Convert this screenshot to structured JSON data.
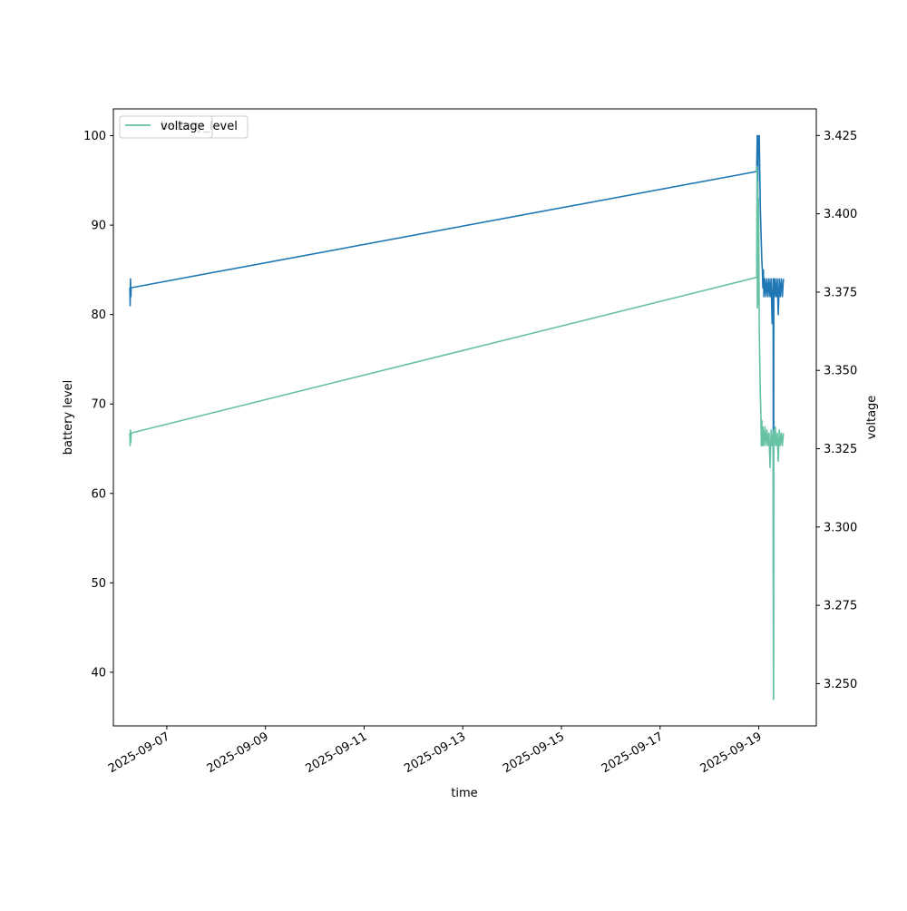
{
  "chart_data": {
    "type": "line",
    "title": "",
    "xlabel": "time",
    "ylabel": "battery level",
    "y2label": "voltage",
    "x_ticks": [
      "2025-09-07",
      "2025-09-09",
      "2025-09-11",
      "2025-09-13",
      "2025-09-15",
      "2025-09-17",
      "2025-09-19"
    ],
    "y_ticks": [
      40,
      50,
      60,
      70,
      80,
      90,
      100
    ],
    "y2_ticks": [
      "3.250",
      "3.275",
      "3.300",
      "3.325",
      "3.350",
      "3.375",
      "3.400",
      "3.425"
    ],
    "xlim": [
      "2025-09-05T22:00",
      "2025-09-20T04:00"
    ],
    "ylim": [
      34,
      103
    ],
    "y2lim": [
      3.2365,
      3.4335
    ],
    "grid": false,
    "legend_position": "upper-left",
    "legend_overlap": true,
    "series": [
      {
        "name": "battery_level",
        "axis": "left",
        "color": "#1f77b4",
        "points": [
          [
            "2025-09-06T06:00",
            83
          ],
          [
            "2025-09-06T06:10",
            81
          ],
          [
            "2025-09-06T06:20",
            84
          ],
          [
            "2025-09-06T06:30",
            82
          ],
          [
            "2025-09-06T06:40",
            83
          ],
          [
            "2025-09-18T23:00",
            96
          ],
          [
            "2025-09-18T23:15",
            100
          ],
          [
            "2025-09-18T23:30",
            93
          ],
          [
            "2025-09-18T23:45",
            100
          ],
          [
            "2025-09-19T00:00",
            98
          ],
          [
            "2025-09-19T00:15",
            100
          ],
          [
            "2025-09-19T00:30",
            96
          ],
          [
            "2025-09-19T00:45",
            92
          ],
          [
            "2025-09-19T01:00",
            90
          ],
          [
            "2025-09-19T01:15",
            88
          ],
          [
            "2025-09-19T01:30",
            86
          ],
          [
            "2025-09-19T01:45",
            85
          ],
          [
            "2025-09-19T02:00",
            83
          ],
          [
            "2025-09-19T02:15",
            85
          ],
          [
            "2025-09-19T02:30",
            82
          ],
          [
            "2025-09-19T03:00",
            84
          ],
          [
            "2025-09-19T03:30",
            82
          ],
          [
            "2025-09-19T04:00",
            84
          ],
          [
            "2025-09-19T04:30",
            82
          ],
          [
            "2025-09-19T05:00",
            84
          ],
          [
            "2025-09-19T05:30",
            82
          ],
          [
            "2025-09-19T06:00",
            84
          ],
          [
            "2025-09-19T06:30",
            79
          ],
          [
            "2025-09-19T07:00",
            84
          ],
          [
            "2025-09-19T07:10",
            37
          ],
          [
            "2025-09-19T07:20",
            84
          ],
          [
            "2025-09-19T07:40",
            82
          ],
          [
            "2025-09-19T08:00",
            84
          ],
          [
            "2025-09-19T08:30",
            82
          ],
          [
            "2025-09-19T09:00",
            84
          ],
          [
            "2025-09-19T09:30",
            80
          ],
          [
            "2025-09-19T10:00",
            84
          ],
          [
            "2025-09-19T10:30",
            82
          ],
          [
            "2025-09-19T11:00",
            84
          ],
          [
            "2025-09-19T11:30",
            82
          ],
          [
            "2025-09-19T12:00",
            84
          ]
        ]
      },
      {
        "name": "voltage",
        "axis": "right",
        "color": "#66c2a5",
        "points": [
          [
            "2025-09-06T06:00",
            3.33
          ],
          [
            "2025-09-06T06:10",
            3.326
          ],
          [
            "2025-09-06T06:20",
            3.331
          ],
          [
            "2025-09-06T06:30",
            3.327
          ],
          [
            "2025-09-06T06:40",
            3.33
          ],
          [
            "2025-09-18T23:00",
            3.3797
          ],
          [
            "2025-09-18T23:10",
            3.415
          ],
          [
            "2025-09-18T23:20",
            3.37
          ],
          [
            "2025-09-18T23:30",
            3.41
          ],
          [
            "2025-09-18T23:40",
            3.371
          ],
          [
            "2025-09-18T23:50",
            3.405
          ],
          [
            "2025-09-19T00:00",
            3.395
          ],
          [
            "2025-09-19T00:15",
            3.363
          ],
          [
            "2025-09-19T00:30",
            3.352
          ],
          [
            "2025-09-19T00:45",
            3.343
          ],
          [
            "2025-09-19T01:00",
            3.337
          ],
          [
            "2025-09-19T01:15",
            3.326
          ],
          [
            "2025-09-19T01:30",
            3.334
          ],
          [
            "2025-09-19T01:45",
            3.326
          ],
          [
            "2025-09-19T02:00",
            3.332
          ],
          [
            "2025-09-19T02:30",
            3.326
          ],
          [
            "2025-09-19T03:00",
            3.332
          ],
          [
            "2025-09-19T03:30",
            3.326
          ],
          [
            "2025-09-19T04:00",
            3.331
          ],
          [
            "2025-09-19T04:30",
            3.326
          ],
          [
            "2025-09-19T05:00",
            3.33
          ],
          [
            "2025-09-19T05:30",
            3.319
          ],
          [
            "2025-09-19T06:00",
            3.331
          ],
          [
            "2025-09-19T06:30",
            3.326
          ],
          [
            "2025-09-19T07:00",
            3.33
          ],
          [
            "2025-09-19T07:10",
            3.245
          ],
          [
            "2025-09-19T07:20",
            3.331
          ],
          [
            "2025-09-19T07:40",
            3.326
          ],
          [
            "2025-09-19T08:00",
            3.332
          ],
          [
            "2025-09-19T08:30",
            3.326
          ],
          [
            "2025-09-19T09:00",
            3.33
          ],
          [
            "2025-09-19T09:30",
            3.321
          ],
          [
            "2025-09-19T10:00",
            3.331
          ],
          [
            "2025-09-19T10:30",
            3.326
          ],
          [
            "2025-09-19T11:00",
            3.33
          ],
          [
            "2025-09-19T11:30",
            3.326
          ],
          [
            "2025-09-19T12:00",
            3.33
          ]
        ]
      }
    ],
    "legends": [
      {
        "entries": [
          {
            "label": "battery_level",
            "color": "#1f77b4"
          }
        ]
      },
      {
        "entries": [
          {
            "label": "voltage",
            "color": "#66c2a5"
          }
        ]
      }
    ]
  }
}
